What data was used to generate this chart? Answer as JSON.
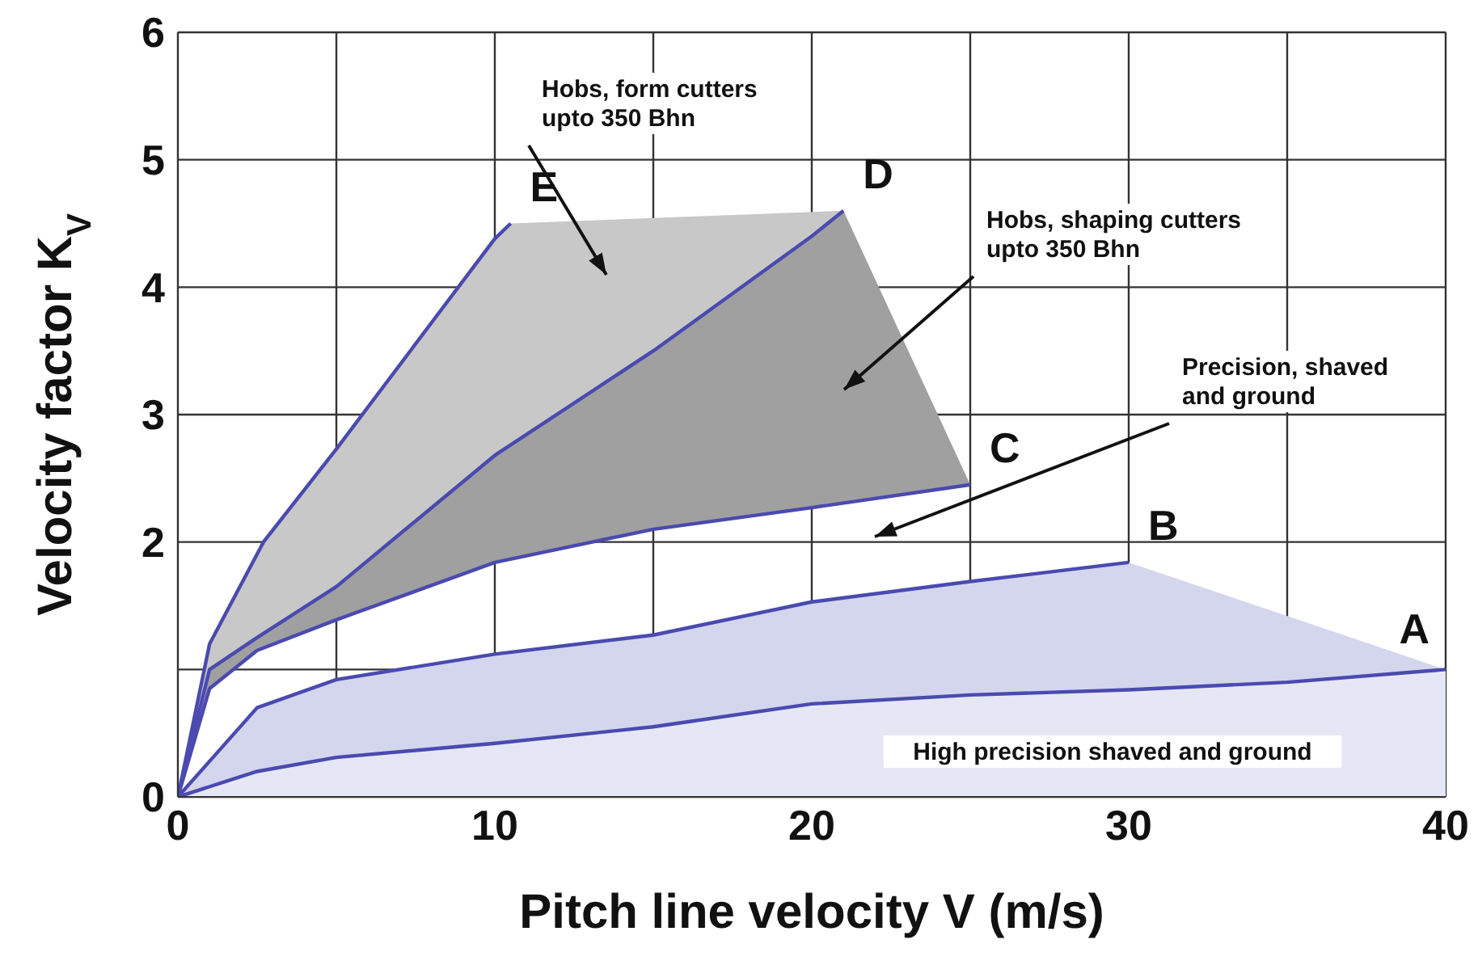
{
  "chart_data": {
    "type": "line",
    "xlabel": "Pitch line velocity  V (m/s)",
    "ylabel": "Velocity factor  K$_{V}$",
    "xlim": [
      0,
      40
    ],
    "ylim": [
      0,
      6
    ],
    "xticks": [
      0,
      {
        "value": 5,
        "label": null
      },
      10,
      {
        "value": 15,
        "label": null
      },
      20,
      {
        "value": 25,
        "label": null
      },
      30,
      {
        "value": 35,
        "label": null
      },
      40
    ],
    "yticks": [
      0,
      {
        "value": 1,
        "label": null
      },
      2,
      3,
      4,
      5,
      6
    ],
    "grid": true,
    "legend": false,
    "marker": "none",
    "line_style": "solid",
    "series": [
      {
        "name": "E",
        "color": "#4a4ab0",
        "x": [
          0,
          1,
          2.7,
          5,
          10,
          10.5
        ],
        "values": [
          0,
          1.2,
          2.0,
          2.73,
          4.38,
          4.5
        ]
      },
      {
        "name": "D",
        "color": "#4a4ab0",
        "x": [
          0,
          1,
          2.5,
          5,
          10,
          15,
          20,
          21
        ],
        "values": [
          0,
          1.0,
          1.25,
          1.65,
          2.68,
          3.5,
          4.4,
          4.6
        ]
      },
      {
        "name": "C",
        "color": "#4a4ab0",
        "x": [
          0,
          1,
          2.5,
          5,
          10,
          15,
          20,
          25
        ],
        "values": [
          0,
          0.85,
          1.15,
          1.39,
          1.84,
          2.1,
          2.27,
          2.45
        ]
      },
      {
        "name": "B",
        "color": "#4a4ab0",
        "x": [
          0,
          2.5,
          5,
          10,
          15,
          20,
          25,
          30
        ],
        "values": [
          0,
          0.7,
          0.92,
          1.12,
          1.27,
          1.53,
          1.69,
          1.84
        ]
      },
      {
        "name": "A",
        "color": "#4a4ab0",
        "x": [
          0,
          2.5,
          5,
          10,
          15,
          20,
          25,
          30,
          35,
          40
        ],
        "values": [
          0,
          0.2,
          0.31,
          0.42,
          0.55,
          0.73,
          0.8,
          0.84,
          0.9,
          1.0
        ]
      }
    ],
    "annotations": [
      "Hobs, form cutters\nupto 350 Bhn",
      "Hobs, shaping cutters\nupto 350 Bhn",
      "Precision, shaved\nand ground",
      "High precision shaved and ground"
    ]
  }
}
